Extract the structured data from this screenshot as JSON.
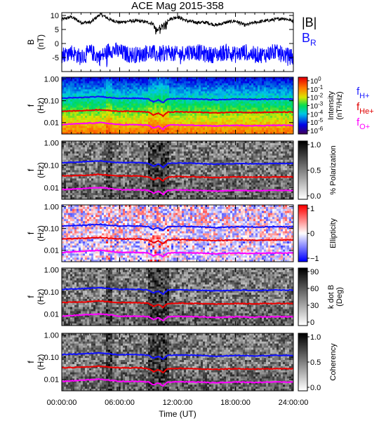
{
  "chart_data": {
    "title": "ACE Mag 2015-358",
    "xlabel": "Time (UT)",
    "x_ticks": [
      "00:00:00",
      "06:00:00",
      "12:00:00",
      "18:00:00",
      "24:00:00"
    ],
    "xlim_hours": [
      0,
      24
    ],
    "panels": [
      {
        "type": "line",
        "ylabel": "B (nT)",
        "ylabel_lines": [
          "B",
          "(nT)"
        ],
        "ylim": [
          -10,
          11
        ],
        "y_ticks": [
          10,
          5,
          0,
          -5
        ],
        "legend": [
          "|B|",
          "B",
          "R"
        ],
        "series": [
          {
            "name": "|B|",
            "color": "#000000",
            "x": [
              0,
              1,
              2,
              3,
              4,
              5,
              6,
              7,
              8,
              9,
              10,
              11,
              12,
              13,
              14,
              15,
              16,
              17,
              18,
              19,
              20,
              21,
              22,
              23,
              24
            ],
            "y": [
              8.5,
              9.5,
              7.5,
              7.5,
              10.5,
              8.5,
              7.5,
              8.0,
              8.0,
              7.5,
              6.5,
              8.5,
              9.5,
              8.0,
              7.5,
              7.5,
              6.5,
              7.5,
              8.0,
              6.5,
              7.5,
              8.0,
              8.5,
              9.0,
              8.0
            ]
          },
          {
            "name": "B_R",
            "color": "#0000ff",
            "x": [
              0,
              1,
              2,
              3,
              4,
              5,
              6,
              7,
              8,
              9,
              10,
              11,
              12,
              13,
              14,
              15,
              16,
              17,
              18,
              19,
              20,
              21,
              22,
              23,
              24
            ],
            "y": [
              -4,
              -3,
              -5,
              -3,
              -5,
              -2,
              -3,
              -4,
              -4,
              -3,
              -4,
              -3,
              -4,
              -3,
              -3,
              -4,
              -4,
              -3,
              -4,
              -3,
              -4,
              -4,
              -3,
              -4,
              -5
            ]
          }
        ]
      },
      {
        "type": "heatmap",
        "ylabel_lines": [
          "f",
          "(Hz)"
        ],
        "yscale": "log",
        "ylim": [
          0.003,
          1.2
        ],
        "y_ticks": [
          "1.00",
          "0.10",
          "0.01"
        ],
        "colormap": "rainbow",
        "colorbar_label": "Intensity (nT²/Hz)",
        "colorbar_label_lines": [
          "Intensity",
          "(nT²/Hz)"
        ],
        "colorbar_ticks": [
          "10^0",
          "10^-1",
          "10^-2",
          "10^-3",
          "10^-4",
          "10^-5",
          "10^-6"
        ],
        "colorbar_tick_bases": [
          "10",
          "10",
          "10",
          "10",
          "10",
          "10",
          "10"
        ],
        "colorbar_tick_exps": [
          "0",
          "-1",
          "-2",
          "-3",
          "-4",
          "-5",
          "-6"
        ],
        "legend": [
          {
            "base": "f",
            "sub": "H+",
            "color": "#2020ff"
          },
          {
            "base": "f",
            "sub": "He+",
            "color": "#e00000"
          },
          {
            "base": "f",
            "sub": "O+",
            "color": "#ff00ff"
          }
        ]
      },
      {
        "type": "heatmap",
        "ylabel_lines": [
          "f",
          "(Hz)"
        ],
        "yscale": "log",
        "ylim": [
          0.003,
          1.2
        ],
        "y_ticks": [
          "1.00",
          "0.10",
          "0.01"
        ],
        "colormap": "gray",
        "colorbar_label": "% Polarization",
        "colorbar_ticks": [
          "1.0",
          "0.5",
          "0.0"
        ]
      },
      {
        "type": "heatmap",
        "ylabel_lines": [
          "f",
          "(Hz)"
        ],
        "yscale": "log",
        "ylim": [
          0.003,
          1.2
        ],
        "y_ticks": [
          "1.00",
          "0.10",
          "0.01"
        ],
        "colormap": "red-white-blue",
        "colorbar_label": "Ellipticity",
        "colorbar_ticks": [
          "1",
          "0",
          "−1"
        ]
      },
      {
        "type": "heatmap",
        "ylabel_lines": [
          "f",
          "(Hz)"
        ],
        "yscale": "log",
        "ylim": [
          0.003,
          1.2
        ],
        "y_ticks": [
          "1.00",
          "0.10",
          "0.01"
        ],
        "colormap": "gray",
        "colorbar_label": "k dot B (Deg)",
        "colorbar_label_lines": [
          "k dot B",
          "(Deg)"
        ],
        "colorbar_ticks": [
          "90",
          "60",
          "30",
          "0"
        ]
      },
      {
        "type": "heatmap",
        "ylabel_lines": [
          "f",
          "(Hz)"
        ],
        "yscale": "log",
        "ylim": [
          0.003,
          1.2
        ],
        "y_ticks": [
          "1.00",
          "0.10",
          "0.01"
        ],
        "colormap": "gray",
        "colorbar_label": "Coherency",
        "colorbar_ticks": [
          "1.0",
          "0.5",
          "0.0"
        ]
      }
    ],
    "gyrofrequency_lines": {
      "x_hours": [
        0,
        2,
        4,
        5,
        6,
        8,
        9,
        9.5,
        10,
        10.5,
        11,
        12,
        14,
        16,
        18,
        20,
        22,
        24
      ],
      "fH": [
        0.13,
        0.14,
        0.155,
        0.14,
        0.13,
        0.13,
        0.12,
        0.09,
        0.11,
        0.08,
        0.12,
        0.125,
        0.12,
        0.11,
        0.12,
        0.115,
        0.12,
        0.12
      ],
      "fHe": [
        0.033,
        0.035,
        0.039,
        0.035,
        0.033,
        0.033,
        0.03,
        0.022,
        0.027,
        0.02,
        0.03,
        0.031,
        0.03,
        0.028,
        0.03,
        0.029,
        0.03,
        0.03
      ],
      "fO": [
        0.008,
        0.009,
        0.01,
        0.009,
        0.008,
        0.008,
        0.0075,
        0.0055,
        0.0068,
        0.005,
        0.0075,
        0.0078,
        0.0075,
        0.007,
        0.0075,
        0.0072,
        0.0075,
        0.0075
      ]
    }
  }
}
